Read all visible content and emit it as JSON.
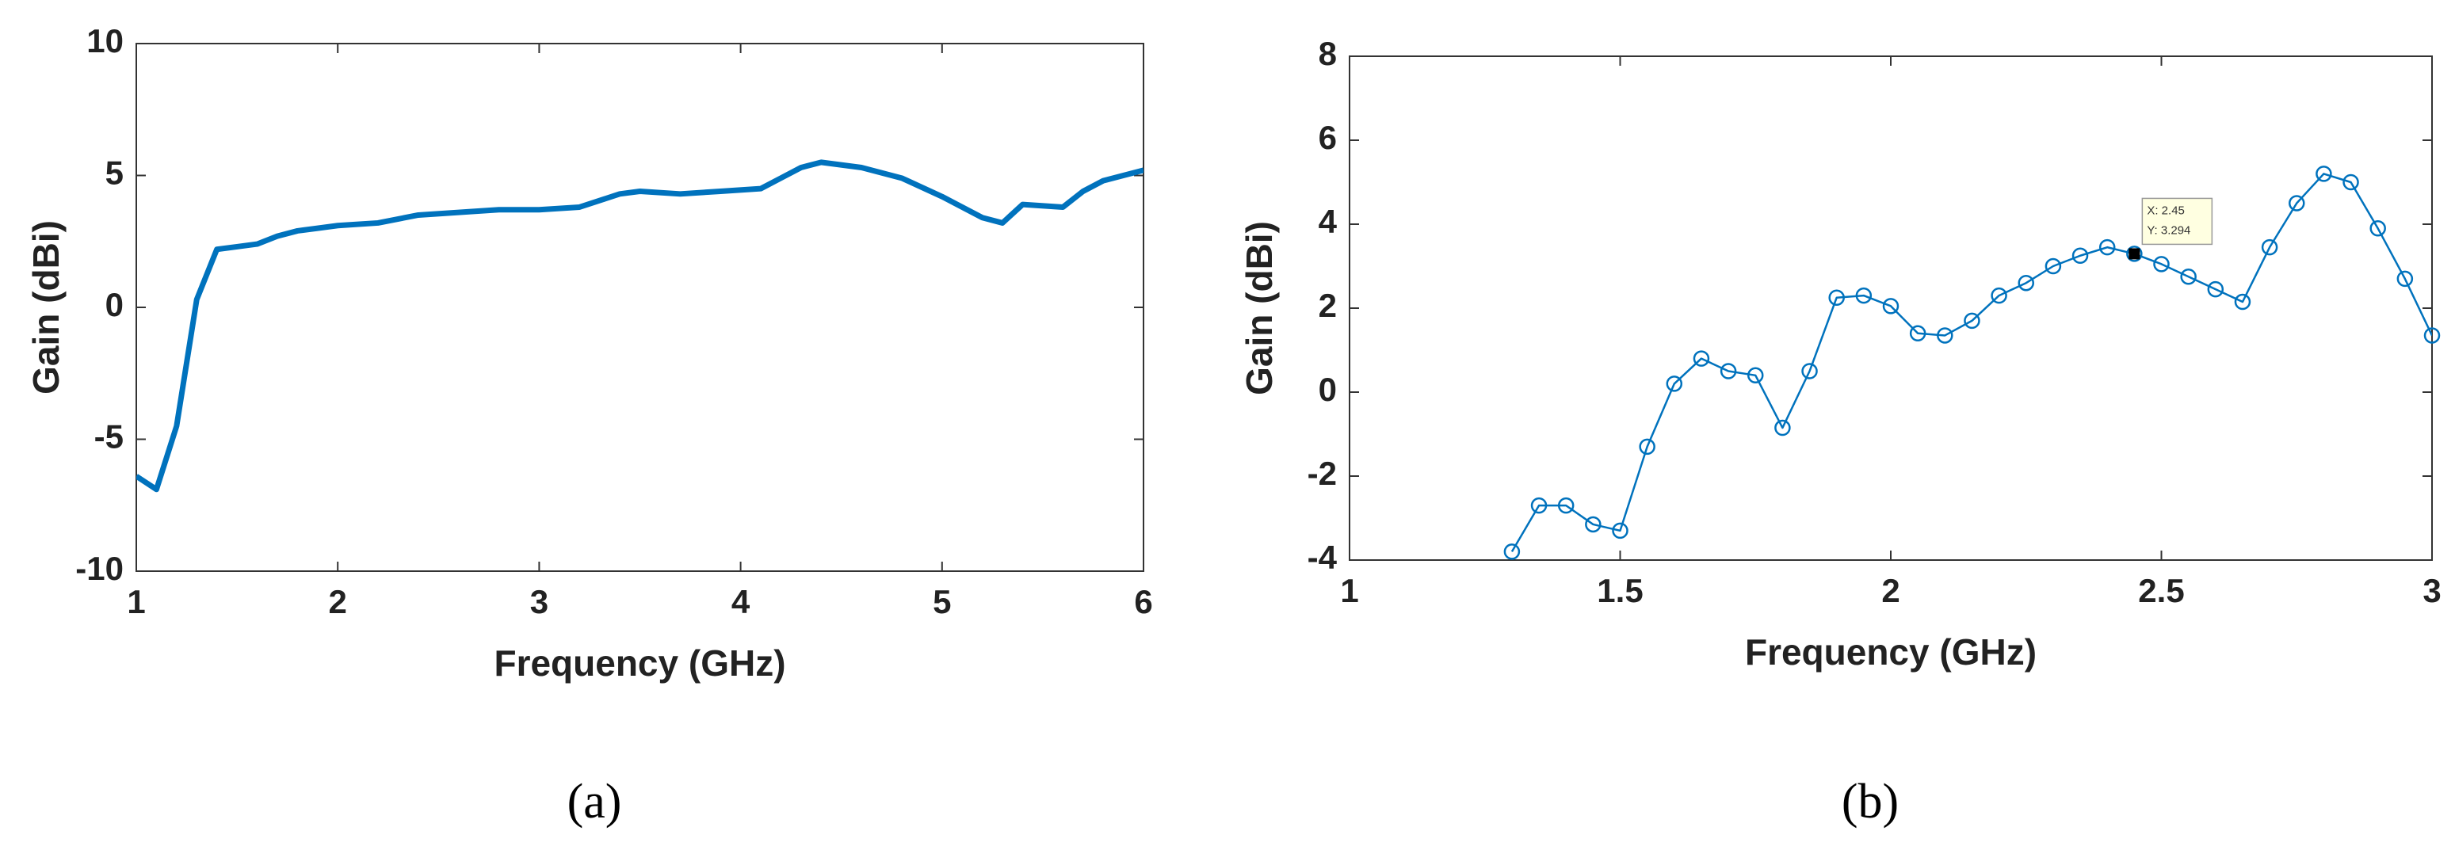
{
  "chart_data": [
    {
      "type": "line",
      "caption": "(a)",
      "xlabel": "Frequency (GHz)",
      "ylabel": "Gain (dBi)",
      "xlim": [
        1,
        6
      ],
      "ylim": [
        -10,
        10
      ],
      "xticks": [
        1,
        2,
        3,
        4,
        5,
        6
      ],
      "yticks": [
        -10,
        -5,
        0,
        5,
        10
      ],
      "x": [
        1,
        1.1,
        1.2,
        1.3,
        1.4,
        1.5,
        1.6,
        1.7,
        1.8,
        1.9,
        2,
        2.2,
        2.4,
        2.6,
        2.8,
        3,
        3.2,
        3.4,
        3.5,
        3.7,
        3.9,
        4.1,
        4.2,
        4.3,
        4.4,
        4.6,
        4.8,
        5,
        5.2,
        5.3,
        5.4,
        5.6,
        5.7,
        5.8,
        5.9,
        6
      ],
      "series": [
        {
          "color": "#0072bd",
          "values": [
            -6.4,
            -6.9,
            -4.5,
            0.3,
            2.2,
            2.3,
            2.4,
            2.7,
            2.9,
            3.0,
            3.1,
            3.2,
            3.5,
            3.6,
            3.7,
            3.7,
            3.8,
            4.3,
            4.4,
            4.3,
            4.4,
            4.5,
            4.9,
            5.3,
            5.5,
            5.3,
            4.9,
            4.2,
            3.4,
            3.2,
            3.9,
            3.8,
            4.4,
            4.8,
            5.0,
            5.2
          ]
        }
      ]
    },
    {
      "type": "line",
      "caption": "(b)",
      "xlabel": "Frequency (GHz)",
      "ylabel": "Gain (dBi)",
      "xlim": [
        1,
        3
      ],
      "ylim": [
        -4,
        8
      ],
      "xticks": [
        1,
        1.5,
        2,
        2.5,
        3
      ],
      "yticks": [
        -4,
        -2,
        0,
        2,
        4,
        6,
        8
      ],
      "marker": "circle",
      "x": [
        1.3,
        1.35,
        1.4,
        1.45,
        1.5,
        1.55,
        1.6,
        1.65,
        1.7,
        1.75,
        1.8,
        1.85,
        1.9,
        1.95,
        2.0,
        2.05,
        2.1,
        2.15,
        2.2,
        2.25,
        2.3,
        2.35,
        2.4,
        2.45,
        2.5,
        2.55,
        2.6,
        2.65,
        2.7,
        2.75,
        2.8,
        2.85,
        2.9,
        2.95,
        3.0
      ],
      "series": [
        {
          "color": "#0072bd",
          "values": [
            -3.8,
            -2.7,
            -2.7,
            -3.15,
            -3.3,
            -1.3,
            0.2,
            0.8,
            0.5,
            0.4,
            -0.85,
            0.5,
            2.25,
            2.3,
            2.05,
            1.4,
            1.35,
            1.7,
            2.3,
            2.6,
            3.0,
            3.25,
            3.45,
            3.294,
            3.05,
            2.75,
            2.45,
            2.15,
            3.45,
            4.5,
            5.2,
            5.0,
            3.9,
            2.7,
            1.35
          ]
        }
      ],
      "datatip": {
        "index": 23,
        "x_text": "X: 2.45",
        "y_text": "Y: 3.294"
      }
    }
  ]
}
